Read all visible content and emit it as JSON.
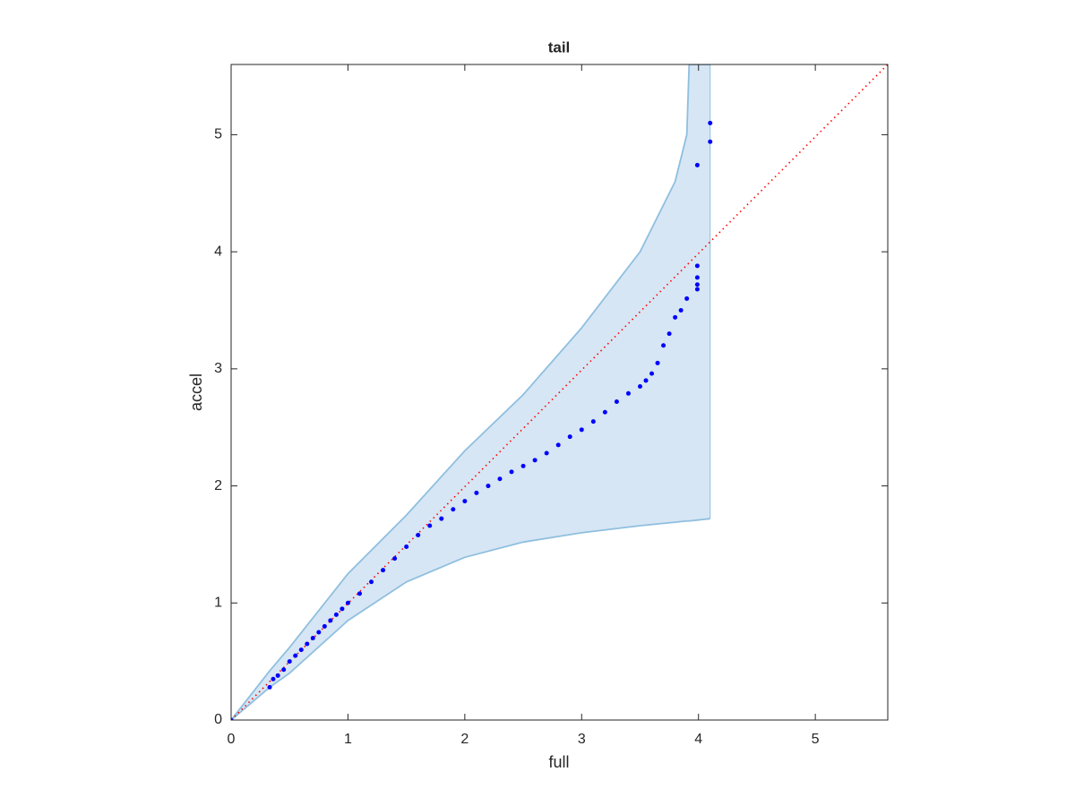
{
  "chart_data": {
    "type": "scatter",
    "title": "tail",
    "xlabel": "full",
    "ylabel": "accel",
    "xlim": [
      0,
      5.62
    ],
    "ylim": [
      0,
      5.6
    ],
    "xticks": [
      0,
      1,
      2,
      3,
      4,
      5
    ],
    "yticks": [
      0,
      1,
      2,
      3,
      4,
      5
    ],
    "points": {
      "color": "#0000ff",
      "x": [
        0,
        0.33,
        0.36,
        0.4,
        0.45,
        0.5,
        0.55,
        0.6,
        0.65,
        0.7,
        0.75,
        0.8,
        0.85,
        0.9,
        0.95,
        1.0,
        1.1,
        1.2,
        1.3,
        1.4,
        1.5,
        1.6,
        1.7,
        1.8,
        1.9,
        2.0,
        2.1,
        2.2,
        2.3,
        2.4,
        2.5,
        2.6,
        2.7,
        2.8,
        2.9,
        3.0,
        3.1,
        3.2,
        3.3,
        3.4,
        3.5,
        3.55,
        3.6,
        3.65,
        3.7,
        3.75,
        3.8,
        3.85,
        3.9,
        3.99,
        3.99,
        3.99,
        3.99,
        3.99,
        4.1,
        4.1
      ],
      "y": [
        0,
        0.28,
        0.35,
        0.38,
        0.43,
        0.5,
        0.55,
        0.6,
        0.65,
        0.7,
        0.75,
        0.8,
        0.85,
        0.9,
        0.95,
        1.0,
        1.08,
        1.18,
        1.28,
        1.38,
        1.48,
        1.58,
        1.66,
        1.72,
        1.8,
        1.87,
        1.94,
        2.0,
        2.06,
        2.12,
        2.17,
        2.22,
        2.28,
        2.35,
        2.42,
        2.48,
        2.55,
        2.63,
        2.72,
        2.79,
        2.85,
        2.9,
        2.96,
        3.05,
        3.2,
        3.3,
        3.44,
        3.5,
        3.6,
        3.68,
        3.72,
        3.78,
        3.88,
        4.74,
        4.94,
        5.1
      ]
    },
    "band": {
      "color": "#d6e6f4",
      "edge": "#8fbfdf",
      "x": [
        0,
        0.33,
        0.5,
        1,
        1.5,
        2,
        2.5,
        3,
        3.5,
        3.8,
        3.9,
        3.92,
        4.1
      ],
      "upper": [
        0,
        0.42,
        0.62,
        1.25,
        1.75,
        2.3,
        2.78,
        3.35,
        4.0,
        4.6,
        5.0,
        5.6,
        5.6
      ],
      "lower": [
        0,
        0.28,
        0.4,
        0.85,
        1.18,
        1.39,
        1.52,
        1.6,
        1.66,
        1.69,
        1.7,
        1.7,
        1.72
      ]
    },
    "reference": {
      "color": "#ff0000",
      "x": [
        0,
        5.62
      ],
      "y": [
        0,
        5.6
      ]
    }
  }
}
